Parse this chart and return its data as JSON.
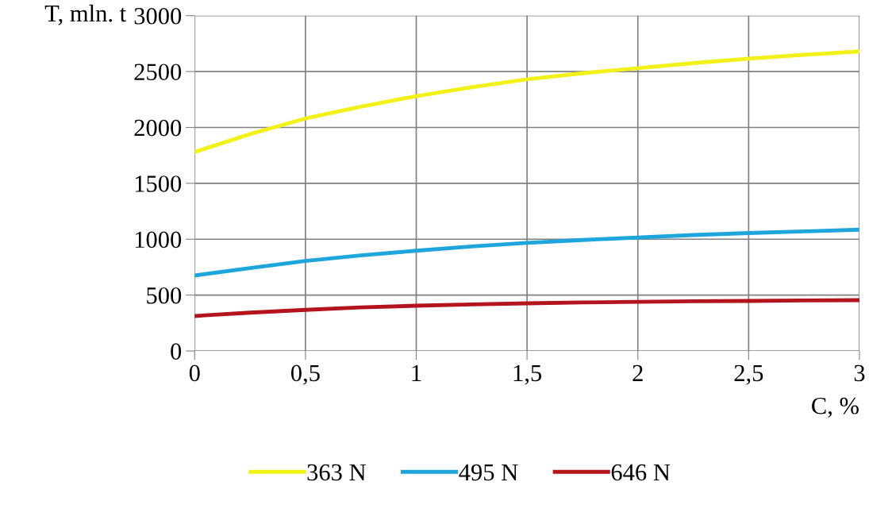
{
  "chart_data": {
    "type": "line",
    "xlabel": "C, %",
    "ylabel": "T, mln. t",
    "x": [
      0,
      0.25,
      0.5,
      0.75,
      1,
      1.25,
      1.5,
      1.75,
      2,
      2.25,
      2.5,
      2.75,
      3
    ],
    "series": [
      {
        "name": "363 N",
        "color": "#f2f21a",
        "values": [
          1780,
          1940,
          2080,
          2185,
          2280,
          2360,
          2430,
          2485,
          2530,
          2575,
          2615,
          2650,
          2680
        ]
      },
      {
        "name": "495 N",
        "color": "#1ea6dc",
        "values": [
          675,
          742,
          805,
          855,
          897,
          935,
          967,
          993,
          1015,
          1037,
          1055,
          1070,
          1085
        ]
      },
      {
        "name": "646 N",
        "color": "#b3141e",
        "values": [
          313,
          343,
          368,
          390,
          405,
          417,
          426,
          434,
          440,
          445,
          448,
          452,
          455
        ]
      }
    ],
    "xlim": [
      0,
      3
    ],
    "xticks": [
      0,
      {
        "value": 0.5,
        "label": "0,5"
      },
      1,
      {
        "value": 1.5,
        "label": "1,5"
      },
      2,
      {
        "value": 2.5,
        "label": "2,5"
      },
      3
    ],
    "ylim": [
      0,
      3000
    ],
    "yticks": [
      0,
      500,
      1000,
      1500,
      2000,
      2500,
      3000
    ],
    "grid": true,
    "legend": "bottom",
    "marker": "none",
    "line_style": "solid"
  }
}
